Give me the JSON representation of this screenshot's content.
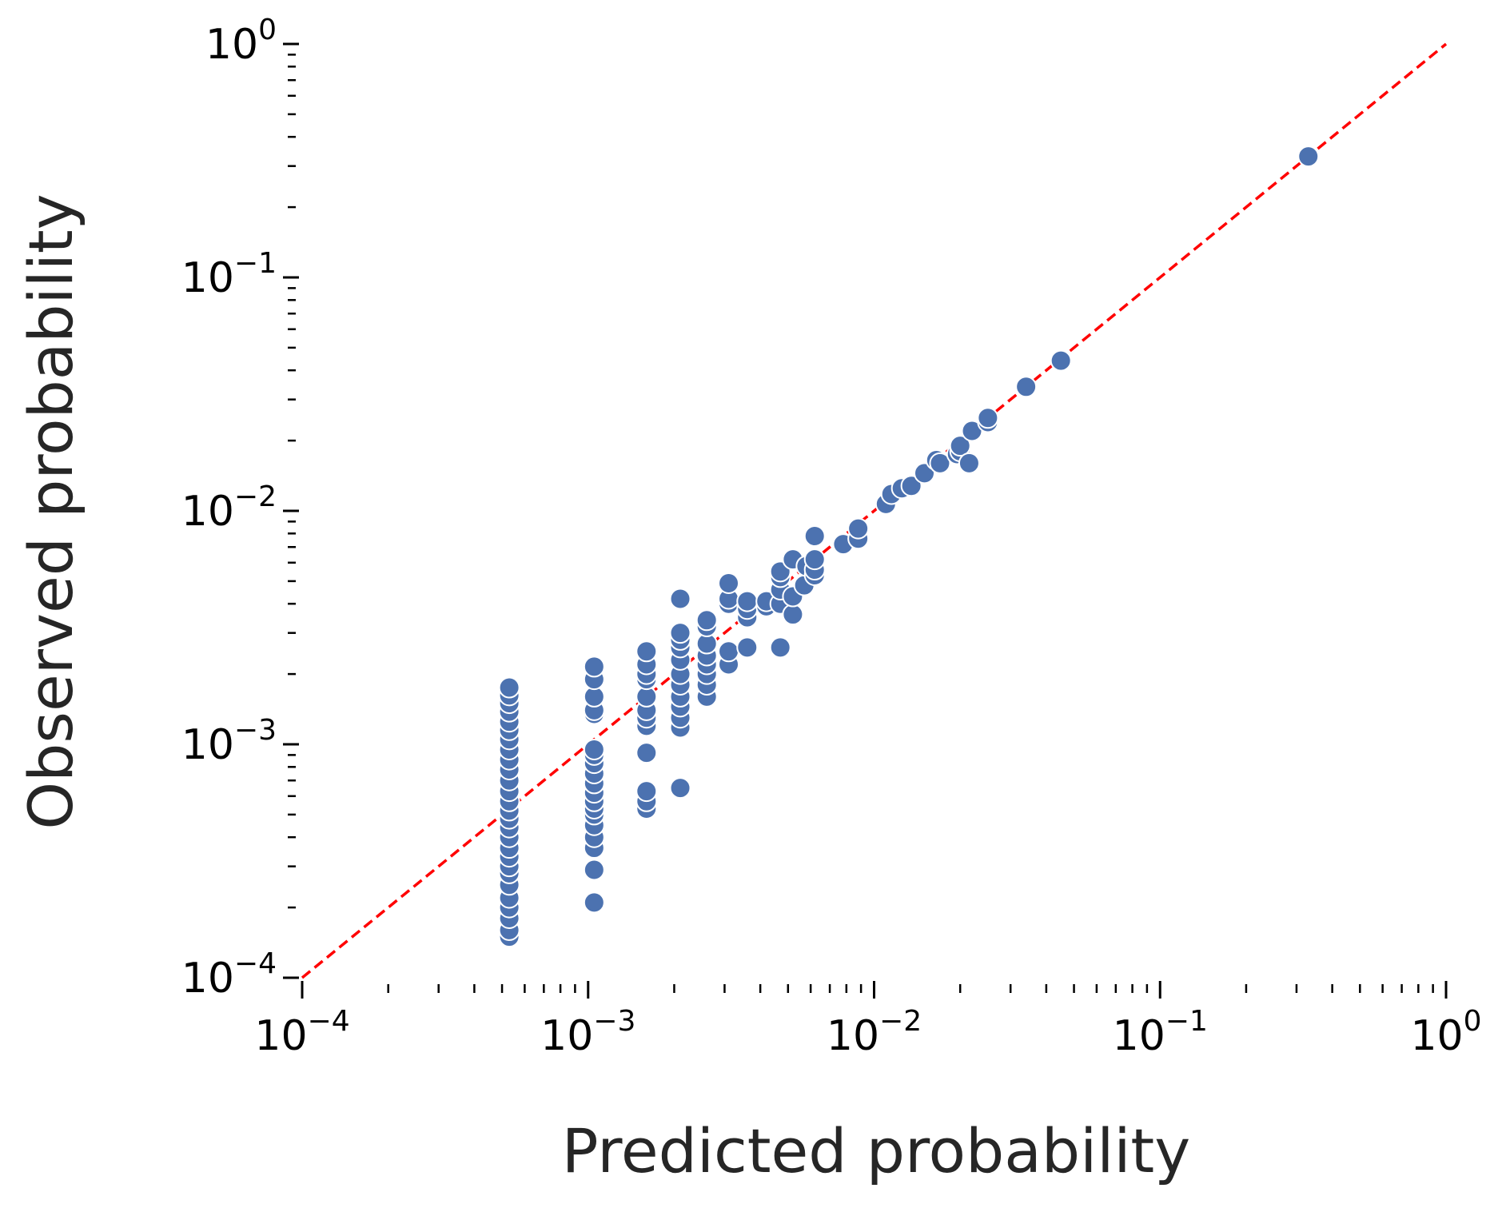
{
  "chart_data": {
    "type": "scatter",
    "xlabel": "Predicted probability",
    "ylabel": "Observed probability",
    "xscale": "log",
    "yscale": "log",
    "xlim": [
      0.0001,
      1
    ],
    "ylim": [
      0.0001,
      1
    ],
    "x_ticks": [
      {
        "base": "10",
        "exp": "−4"
      },
      {
        "base": "10",
        "exp": "−3"
      },
      {
        "base": "10",
        "exp": "−2"
      },
      {
        "base": "10",
        "exp": "−1"
      },
      {
        "base": "10",
        "exp": "0"
      }
    ],
    "y_ticks": [
      {
        "base": "10",
        "exp": "−4"
      },
      {
        "base": "10",
        "exp": "−3"
      },
      {
        "base": "10",
        "exp": "−2"
      },
      {
        "base": "10",
        "exp": "−1"
      },
      {
        "base": "10",
        "exp": "0"
      }
    ],
    "grid": false,
    "reference_line": {
      "style": "dashed",
      "color": "#ff0000",
      "x": [
        0.0001,
        1
      ],
      "y": [
        0.0001,
        1
      ]
    },
    "marker_color": "#4c72b0",
    "marker_edge_color": "#ffffff",
    "points": [
      {
        "x": 0.00053,
        "y": 0.00015
      },
      {
        "x": 0.00053,
        "y": 0.00016
      },
      {
        "x": 0.00053,
        "y": 0.00018
      },
      {
        "x": 0.00053,
        "y": 0.0002
      },
      {
        "x": 0.00053,
        "y": 0.00022
      },
      {
        "x": 0.00053,
        "y": 0.00025
      },
      {
        "x": 0.00053,
        "y": 0.00028
      },
      {
        "x": 0.00053,
        "y": 0.0003
      },
      {
        "x": 0.00053,
        "y": 0.00033
      },
      {
        "x": 0.00053,
        "y": 0.00036
      },
      {
        "x": 0.00053,
        "y": 0.0004
      },
      {
        "x": 0.00053,
        "y": 0.00044
      },
      {
        "x": 0.00053,
        "y": 0.00048
      },
      {
        "x": 0.00053,
        "y": 0.00052
      },
      {
        "x": 0.00053,
        "y": 0.00057
      },
      {
        "x": 0.00053,
        "y": 0.00063
      },
      {
        "x": 0.00053,
        "y": 0.0007
      },
      {
        "x": 0.00053,
        "y": 0.00078
      },
      {
        "x": 0.00053,
        "y": 0.00086
      },
      {
        "x": 0.00053,
        "y": 0.00095
      },
      {
        "x": 0.00053,
        "y": 0.00105
      },
      {
        "x": 0.00053,
        "y": 0.00115
      },
      {
        "x": 0.00053,
        "y": 0.00125
      },
      {
        "x": 0.00053,
        "y": 0.00138
      },
      {
        "x": 0.00053,
        "y": 0.0015
      },
      {
        "x": 0.00053,
        "y": 0.00162
      },
      {
        "x": 0.00053,
        "y": 0.00175
      },
      {
        "x": 0.00105,
        "y": 0.00021
      },
      {
        "x": 0.00105,
        "y": 0.00029
      },
      {
        "x": 0.00105,
        "y": 0.00036
      },
      {
        "x": 0.00105,
        "y": 0.0004
      },
      {
        "x": 0.00105,
        "y": 0.00045
      },
      {
        "x": 0.00105,
        "y": 0.0005
      },
      {
        "x": 0.00105,
        "y": 0.00053
      },
      {
        "x": 0.00105,
        "y": 0.00057
      },
      {
        "x": 0.00105,
        "y": 0.00062
      },
      {
        "x": 0.00105,
        "y": 0.00068
      },
      {
        "x": 0.00105,
        "y": 0.00075
      },
      {
        "x": 0.00105,
        "y": 0.00083
      },
      {
        "x": 0.00105,
        "y": 0.0009
      },
      {
        "x": 0.00105,
        "y": 0.00095
      },
      {
        "x": 0.00105,
        "y": 0.00135
      },
      {
        "x": 0.00105,
        "y": 0.0014
      },
      {
        "x": 0.00105,
        "y": 0.0016
      },
      {
        "x": 0.00105,
        "y": 0.0019
      },
      {
        "x": 0.00105,
        "y": 0.00215
      },
      {
        "x": 0.0016,
        "y": 0.00053
      },
      {
        "x": 0.0016,
        "y": 0.00057
      },
      {
        "x": 0.0016,
        "y": 0.00063
      },
      {
        "x": 0.0016,
        "y": 0.00092
      },
      {
        "x": 0.0016,
        "y": 0.0012
      },
      {
        "x": 0.0016,
        "y": 0.0013
      },
      {
        "x": 0.0016,
        "y": 0.0014
      },
      {
        "x": 0.0016,
        "y": 0.0016
      },
      {
        "x": 0.0016,
        "y": 0.0019
      },
      {
        "x": 0.0016,
        "y": 0.002
      },
      {
        "x": 0.0016,
        "y": 0.0022
      },
      {
        "x": 0.0016,
        "y": 0.0025
      },
      {
        "x": 0.0021,
        "y": 0.00065
      },
      {
        "x": 0.0021,
        "y": 0.00118
      },
      {
        "x": 0.0021,
        "y": 0.0013
      },
      {
        "x": 0.0021,
        "y": 0.00145
      },
      {
        "x": 0.0021,
        "y": 0.0016
      },
      {
        "x": 0.0021,
        "y": 0.0018
      },
      {
        "x": 0.0021,
        "y": 0.002
      },
      {
        "x": 0.0021,
        "y": 0.0023
      },
      {
        "x": 0.0021,
        "y": 0.0026
      },
      {
        "x": 0.0021,
        "y": 0.0028
      },
      {
        "x": 0.0021,
        "y": 0.003
      },
      {
        "x": 0.0021,
        "y": 0.0042
      },
      {
        "x": 0.0026,
        "y": 0.0016
      },
      {
        "x": 0.0026,
        "y": 0.0018
      },
      {
        "x": 0.0026,
        "y": 0.002
      },
      {
        "x": 0.0026,
        "y": 0.0022
      },
      {
        "x": 0.0026,
        "y": 0.0024
      },
      {
        "x": 0.0026,
        "y": 0.0027
      },
      {
        "x": 0.0026,
        "y": 0.0032
      },
      {
        "x": 0.0026,
        "y": 0.0034
      },
      {
        "x": 0.0031,
        "y": 0.0022
      },
      {
        "x": 0.0031,
        "y": 0.0025
      },
      {
        "x": 0.0031,
        "y": 0.004
      },
      {
        "x": 0.0031,
        "y": 0.0042
      },
      {
        "x": 0.0031,
        "y": 0.0049
      },
      {
        "x": 0.0036,
        "y": 0.0026
      },
      {
        "x": 0.0036,
        "y": 0.0035
      },
      {
        "x": 0.0036,
        "y": 0.0038
      },
      {
        "x": 0.0036,
        "y": 0.0041
      },
      {
        "x": 0.0042,
        "y": 0.0039
      },
      {
        "x": 0.0042,
        "y": 0.0041
      },
      {
        "x": 0.0047,
        "y": 0.0026
      },
      {
        "x": 0.0047,
        "y": 0.004
      },
      {
        "x": 0.0047,
        "y": 0.0046
      },
      {
        "x": 0.0047,
        "y": 0.0052
      },
      {
        "x": 0.0047,
        "y": 0.0055
      },
      {
        "x": 0.0052,
        "y": 0.0036
      },
      {
        "x": 0.0052,
        "y": 0.0043
      },
      {
        "x": 0.0052,
        "y": 0.0062
      },
      {
        "x": 0.0057,
        "y": 0.0048
      },
      {
        "x": 0.0058,
        "y": 0.0058
      },
      {
        "x": 0.0062,
        "y": 0.0053
      },
      {
        "x": 0.0062,
        "y": 0.0056
      },
      {
        "x": 0.0062,
        "y": 0.0062
      },
      {
        "x": 0.0062,
        "y": 0.0078
      },
      {
        "x": 0.0078,
        "y": 0.0072
      },
      {
        "x": 0.0088,
        "y": 0.0076
      },
      {
        "x": 0.0088,
        "y": 0.0084
      },
      {
        "x": 0.011,
        "y": 0.0107
      },
      {
        "x": 0.0115,
        "y": 0.0118
      },
      {
        "x": 0.0125,
        "y": 0.0125
      },
      {
        "x": 0.0135,
        "y": 0.0128
      },
      {
        "x": 0.015,
        "y": 0.0145
      },
      {
        "x": 0.0165,
        "y": 0.0165
      },
      {
        "x": 0.017,
        "y": 0.016
      },
      {
        "x": 0.0195,
        "y": 0.0175
      },
      {
        "x": 0.02,
        "y": 0.018
      },
      {
        "x": 0.02,
        "y": 0.019
      },
      {
        "x": 0.0215,
        "y": 0.016
      },
      {
        "x": 0.022,
        "y": 0.022
      },
      {
        "x": 0.025,
        "y": 0.024
      },
      {
        "x": 0.025,
        "y": 0.025
      },
      {
        "x": 0.034,
        "y": 0.034
      },
      {
        "x": 0.045,
        "y": 0.044
      },
      {
        "x": 0.33,
        "y": 0.33
      }
    ]
  }
}
